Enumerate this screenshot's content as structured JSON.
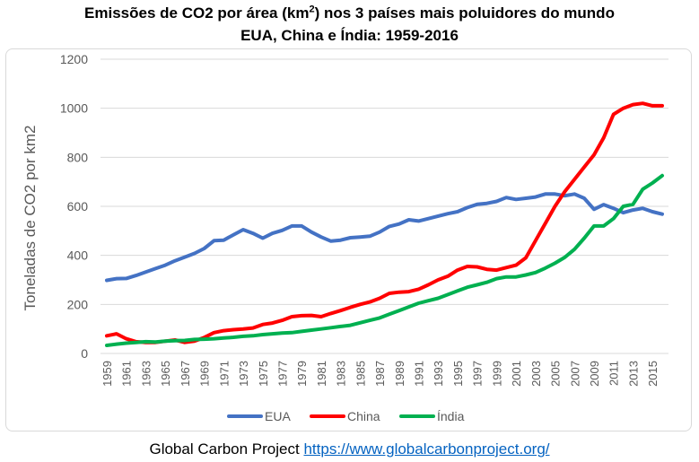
{
  "title": {
    "line1_pre": "Emissões de CO2 por área (km",
    "line1_sup": "2",
    "line1_post": ") nos 3 países mais poluidores do mundo",
    "line2": "EUA, China e Índia: 1959-2016"
  },
  "source": {
    "label": "Global Carbon Project",
    "url": "https://www.globalcarbonproject.org/"
  },
  "chart_data": {
    "type": "line",
    "ylabel": "Toneladas de CO2 por km2",
    "ylim": [
      0,
      1200
    ],
    "yticks": [
      0,
      200,
      400,
      600,
      800,
      1000,
      1200
    ],
    "xlim": [
      1959,
      2016
    ],
    "xticks": [
      1959,
      1961,
      1963,
      1965,
      1967,
      1969,
      1971,
      1973,
      1975,
      1977,
      1979,
      1981,
      1983,
      1985,
      1987,
      1989,
      1991,
      1993,
      1995,
      1997,
      1999,
      2001,
      2003,
      2005,
      2007,
      2009,
      2011,
      2013,
      2015
    ],
    "grid": "horizontal",
    "legend": "bottom",
    "x": [
      1959,
      1960,
      1961,
      1962,
      1963,
      1964,
      1965,
      1966,
      1967,
      1968,
      1969,
      1970,
      1971,
      1972,
      1973,
      1974,
      1975,
      1976,
      1977,
      1978,
      1979,
      1980,
      1981,
      1982,
      1983,
      1984,
      1985,
      1986,
      1987,
      1988,
      1989,
      1990,
      1991,
      1992,
      1993,
      1994,
      1995,
      1996,
      1997,
      1998,
      1999,
      2000,
      2001,
      2002,
      2003,
      2004,
      2005,
      2006,
      2007,
      2008,
      2009,
      2010,
      2011,
      2012,
      2013,
      2014,
      2015,
      2016
    ],
    "series": [
      {
        "name": "EUA",
        "color": "#4472c4",
        "values": [
          298,
          305,
          306,
          318,
          332,
          346,
          360,
          378,
          393,
          408,
          428,
          460,
          462,
          484,
          505,
          490,
          470,
          490,
          502,
          520,
          520,
          495,
          475,
          458,
          462,
          472,
          475,
          478,
          495,
          518,
          528,
          545,
          540,
          550,
          560,
          570,
          578,
          595,
          608,
          612,
          620,
          636,
          628,
          633,
          638,
          650,
          650,
          643,
          650,
          633,
          588,
          607,
          592,
          574,
          585,
          592,
          578,
          568
        ]
      },
      {
        "name": "China",
        "color": "#ff0000",
        "values": [
          72,
          80,
          60,
          48,
          45,
          45,
          50,
          55,
          45,
          50,
          65,
          85,
          93,
          97,
          100,
          104,
          118,
          124,
          135,
          150,
          154,
          155,
          150,
          163,
          175,
          188,
          200,
          210,
          225,
          245,
          250,
          252,
          262,
          280,
          300,
          315,
          340,
          355,
          353,
          343,
          340,
          350,
          360,
          390,
          460,
          530,
          600,
          660,
          710,
          760,
          810,
          880,
          975,
          1000,
          1015,
          1020,
          1010,
          1010
        ]
      },
      {
        "name": "Índia",
        "color": "#00b050",
        "values": [
          33,
          38,
          42,
          45,
          48,
          47,
          50,
          52,
          53,
          57,
          58,
          60,
          63,
          66,
          70,
          72,
          77,
          80,
          83,
          85,
          90,
          95,
          100,
          105,
          110,
          115,
          125,
          135,
          145,
          160,
          175,
          190,
          205,
          215,
          225,
          240,
          255,
          270,
          280,
          290,
          305,
          312,
          312,
          320,
          330,
          348,
          368,
          392,
          425,
          470,
          520,
          520,
          550,
          600,
          608,
          670,
          695,
          725
        ]
      }
    ]
  }
}
